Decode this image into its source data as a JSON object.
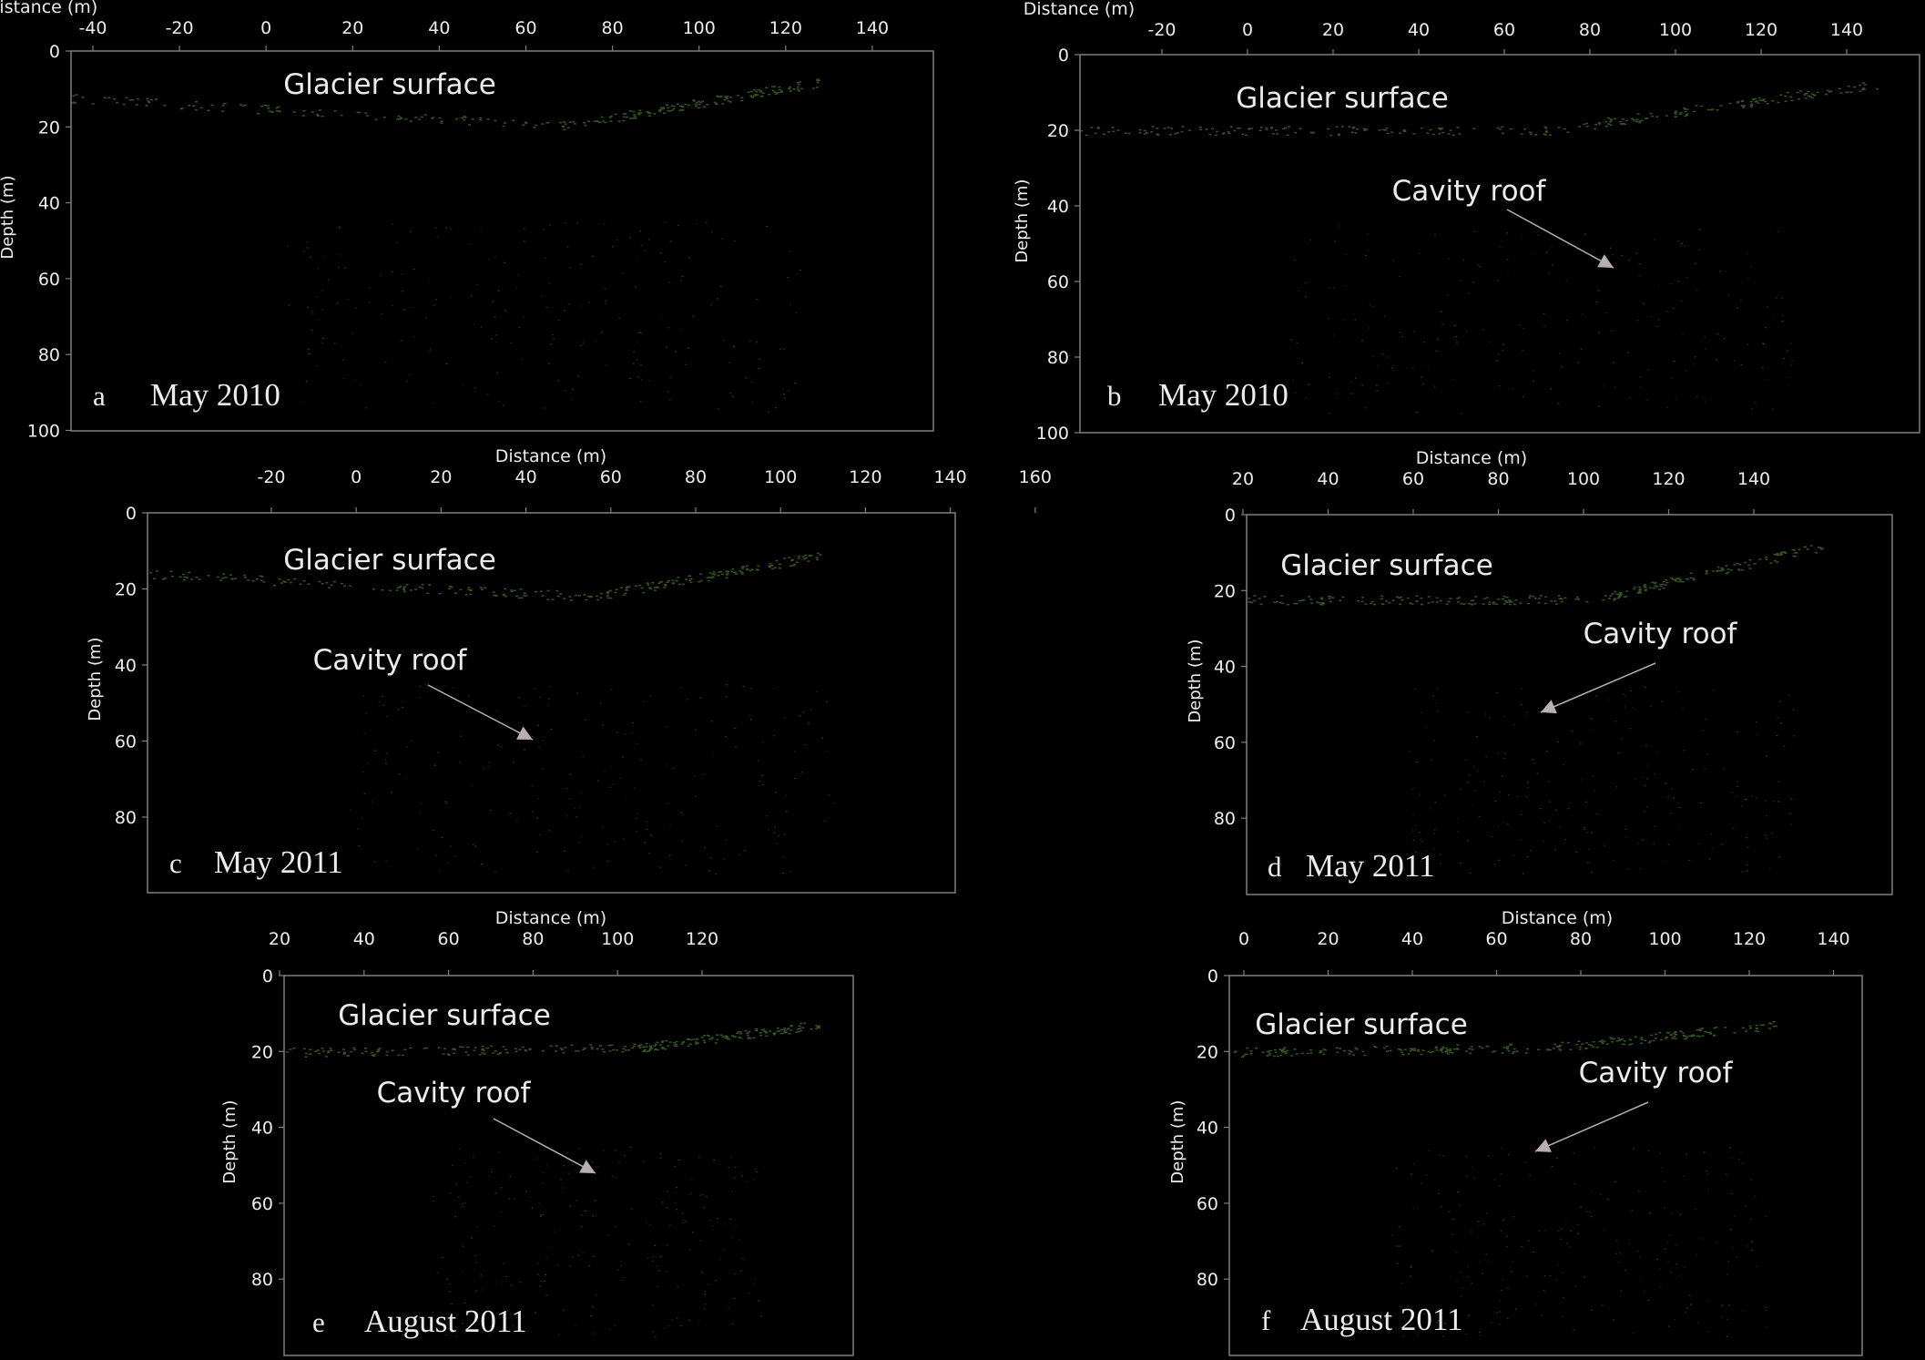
{
  "figure": {
    "x_axis_label": "Distance (m)",
    "y_axis_label": "Depth (m)",
    "surface_label": "Glacier surface",
    "cavity_label": "Cavity roof",
    "colors": {
      "background": "#000000",
      "frame": "#7f7f7f",
      "text": "#ececec",
      "arrow": "#b8b0b0",
      "echo": "#5f9a3a"
    }
  },
  "panels": [
    {
      "id": "a",
      "letter": "a",
      "date": "May 2010",
      "has_cavity": false,
      "x_ticks": [
        "-40",
        "-20",
        "0",
        "20",
        "40",
        "60",
        "80",
        "100",
        "120",
        "140"
      ],
      "y_ticks": [
        "0",
        "20",
        "40",
        "60",
        "80",
        "100"
      ]
    },
    {
      "id": "b",
      "letter": "b",
      "date": "May 2010",
      "has_cavity": true,
      "x_ticks": [
        "-20",
        "0",
        "20",
        "40",
        "60",
        "80",
        "100",
        "120",
        "140"
      ],
      "y_ticks": [
        "0",
        "20",
        "40",
        "60",
        "80",
        "100"
      ]
    },
    {
      "id": "c",
      "letter": "c",
      "date": "May 2011",
      "has_cavity": true,
      "x_ticks": [
        "-20",
        "0",
        "20",
        "40",
        "60",
        "80",
        "100",
        "120",
        "140",
        "160"
      ],
      "y_ticks": [
        "0",
        "20",
        "40",
        "60",
        "80"
      ]
    },
    {
      "id": "d",
      "letter": "d",
      "date": "May 2011",
      "has_cavity": true,
      "x_ticks": [
        "20",
        "40",
        "60",
        "80",
        "100",
        "120",
        "140"
      ],
      "y_ticks": [
        "0",
        "20",
        "40",
        "60",
        "80"
      ]
    },
    {
      "id": "e",
      "letter": "e",
      "date": "August 2011",
      "has_cavity": true,
      "x_ticks": [
        "20",
        "40",
        "60",
        "80",
        "100",
        "120"
      ],
      "y_ticks": [
        "0",
        "20",
        "40",
        "60",
        "80"
      ]
    },
    {
      "id": "f",
      "letter": "f",
      "date": "August 2011",
      "has_cavity": true,
      "x_ticks": [
        "0",
        "20",
        "40",
        "60",
        "80",
        "100",
        "120",
        "140"
      ],
      "y_ticks": [
        "0",
        "20",
        "40",
        "60",
        "80"
      ]
    }
  ]
}
